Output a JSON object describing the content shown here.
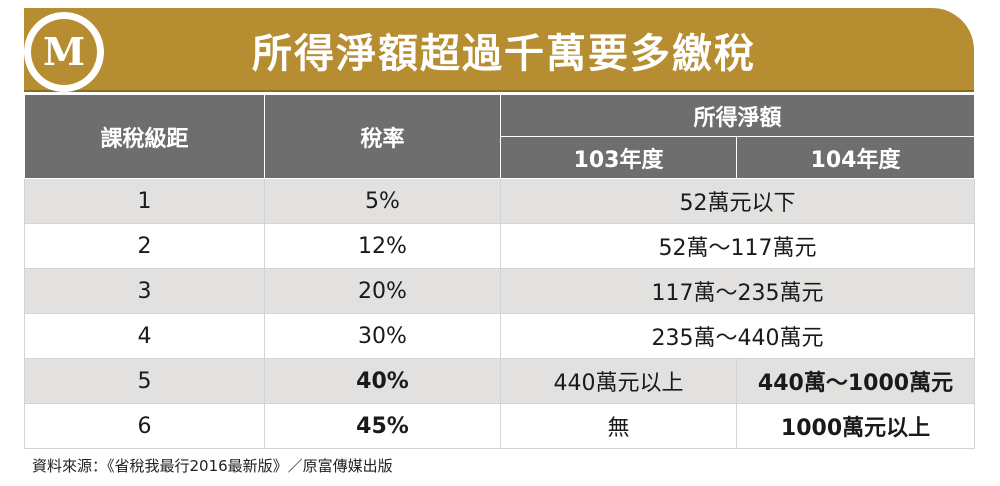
{
  "header": {
    "logo_letter": "M",
    "title": "所得淨額超過千萬要多繳稅"
  },
  "table": {
    "col_bracket": "課稅級距",
    "col_rate": "稅率",
    "col_income": "所得淨額",
    "col_year_103": "103年度",
    "col_year_104": "104年度",
    "rows": [
      {
        "bracket": "1",
        "rate": "5%",
        "income": "52萬元以下"
      },
      {
        "bracket": "2",
        "rate": "12%",
        "income": "52萬～117萬元"
      },
      {
        "bracket": "3",
        "rate": "20%",
        "income": "117萬～235萬元"
      },
      {
        "bracket": "4",
        "rate": "30%",
        "income": "235萬～440萬元"
      },
      {
        "bracket": "5",
        "rate": "40%",
        "income_103": "440萬元以上",
        "income_104": "440萬～1000萬元"
      },
      {
        "bracket": "6",
        "rate": "45%",
        "income_103": "無",
        "income_104": "1000萬元以上"
      }
    ]
  },
  "footer": {
    "source": "資料來源：《省稅我最行2016最新版》／原富傳媒出版"
  },
  "colors": {
    "banner": "#b78d31",
    "header_bg": "#6e6e6e",
    "shade_row": "#e3e1df",
    "highlight": "#d0121b"
  }
}
